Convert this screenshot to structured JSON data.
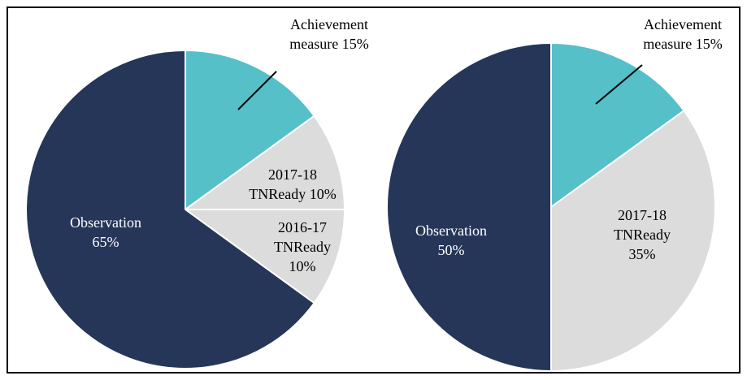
{
  "chart_data": [
    {
      "type": "pie",
      "categories": [
        "Achievement measure",
        "2017-18 TNReady",
        "2016-17 TNReady",
        "Observation"
      ],
      "values": [
        15,
        10,
        10,
        65
      ],
      "value_labels": [
        "15%",
        "10%",
        "10%",
        "65%"
      ],
      "colors": [
        "#56c0c9",
        "#dcdcdc",
        "#dcdcdc",
        "#253658"
      ]
    },
    {
      "type": "pie",
      "categories": [
        "Achievement measure",
        "2017-18 TNReady",
        "Observation"
      ],
      "values": [
        15,
        35,
        50
      ],
      "value_labels": [
        "15%",
        "35%",
        "50%"
      ],
      "colors": [
        "#56c0c9",
        "#dcdcdc",
        "#253658"
      ]
    }
  ]
}
